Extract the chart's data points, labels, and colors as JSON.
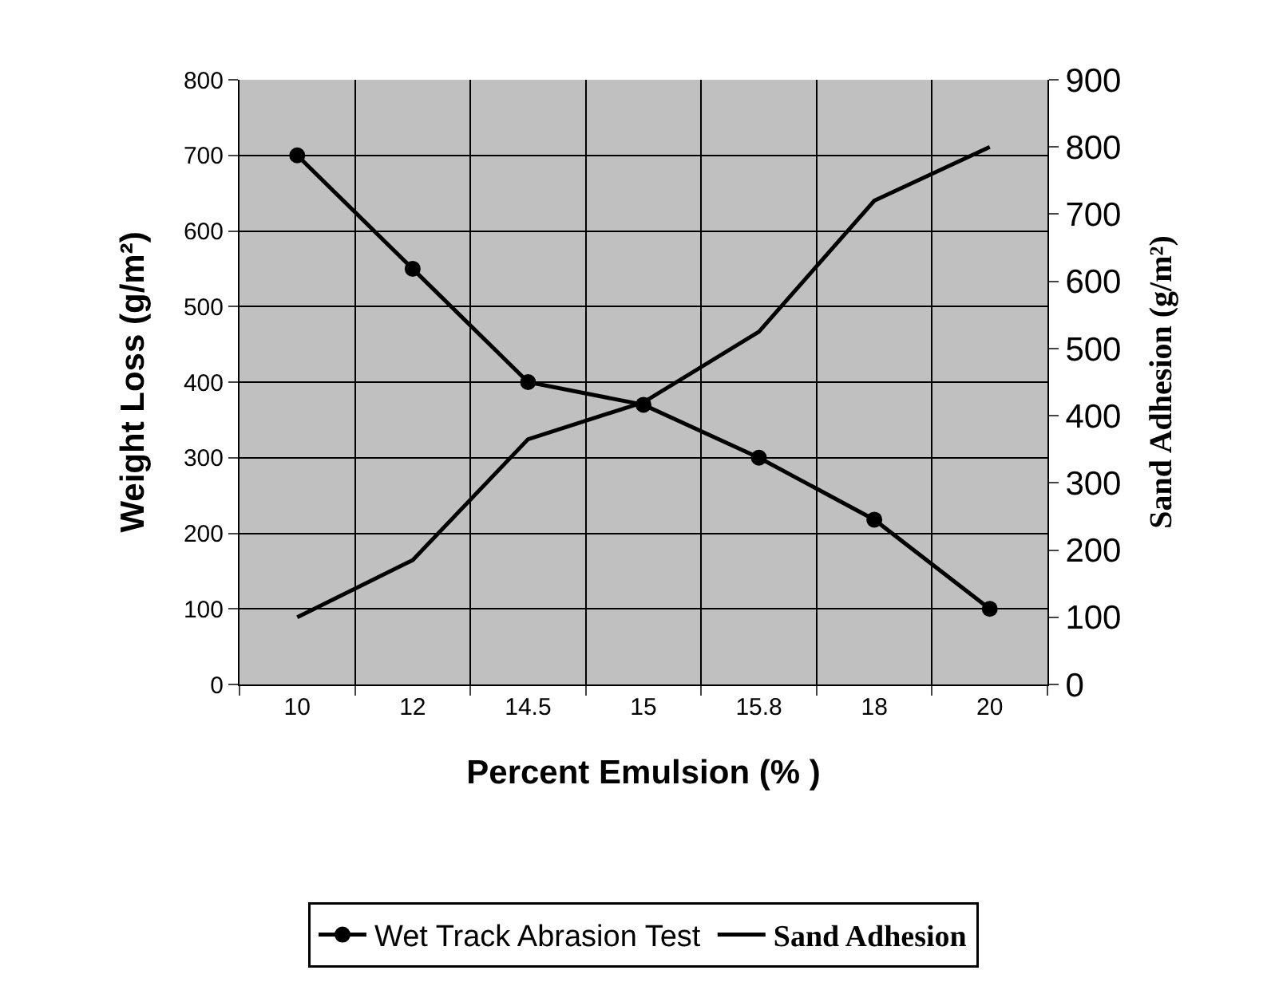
{
  "chart_data": {
    "type": "line",
    "xlabel": "Percent Emulsion (% )",
    "ylabel": "Weight Loss (g/m²)",
    "y2label": "Sand Adhesion (g/m²)",
    "categories": [
      "10",
      "12",
      "14.5",
      "15",
      "15.8",
      "18",
      "20"
    ],
    "series": [
      {
        "name": "Wet Track Abrasion Test",
        "color": "#000000",
        "values": [
          700,
          550,
          400,
          370,
          300,
          218,
          100
        ],
        "marker": "circle"
      },
      {
        "name": "Sand Adhesion",
        "color": "#000000",
        "values": [
          100,
          185,
          365,
          420,
          525,
          720,
          800
        ],
        "axis": "y2",
        "marker": "none"
      }
    ],
    "ylim": [
      0,
      800
    ],
    "yticks": [
      0,
      100,
      200,
      300,
      400,
      500,
      600,
      700,
      800
    ],
    "y2lim": [
      0,
      900
    ],
    "y2ticks": [
      0,
      100,
      200,
      300,
      400,
      500,
      600,
      700,
      800,
      900
    ],
    "grid": true,
    "legend": "bottom",
    "line_style": "solid"
  }
}
